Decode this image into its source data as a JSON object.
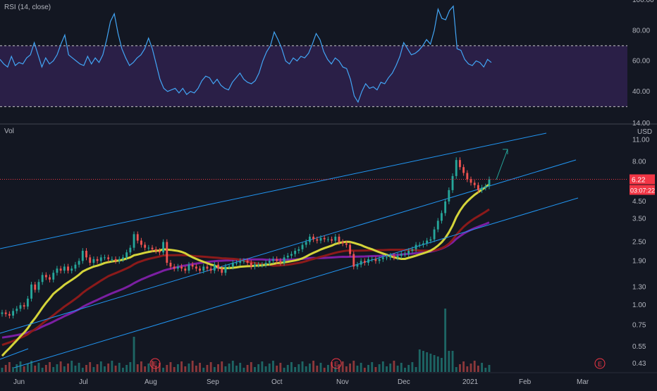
{
  "rsi_panel": {
    "title": "RSI (14, close)",
    "upper_band": 70,
    "lower_band": 30
  },
  "price_panel": {
    "volume_label": "Vol",
    "currency": "USD",
    "top_tick": "14.00",
    "price_badge": "6.22",
    "countdown_badge": "03:07:22",
    "earnings_marker": "E"
  },
  "colors": {
    "background": "#131722",
    "rsi_line": "#42a5f5",
    "rsi_fill": "#2a1f47",
    "channel": "#2196f3",
    "up_candle": "#26a69a",
    "down_candle": "#ef5350",
    "ma_fast": "#d4d43a",
    "ma_mid": "#8b1a1a",
    "ma_slow": "#7b1fa2",
    "badge": "#f23645"
  },
  "chart_data": [
    {
      "type": "line",
      "series": [
        {
          "name": "RSI (14, close)",
          "values": [
            61,
            58,
            56,
            63,
            57,
            59,
            58,
            62,
            64,
            72,
            64,
            56,
            62,
            58,
            60,
            64,
            71,
            77,
            64,
            62,
            60,
            58,
            57,
            63,
            58,
            62,
            59,
            64,
            74,
            86,
            91,
            78,
            68,
            62,
            57,
            59,
            62,
            64,
            68,
            75,
            68,
            58,
            48,
            42,
            40,
            41,
            42,
            39,
            42,
            38,
            40,
            39,
            42,
            47,
            50,
            49,
            45,
            48,
            44,
            42,
            41,
            46,
            49,
            52,
            48,
            46,
            45,
            47,
            52,
            60,
            66,
            70,
            79,
            74,
            68,
            60,
            58,
            62,
            60,
            63,
            62,
            65,
            71,
            78,
            74,
            66,
            61,
            58,
            62,
            60,
            56,
            55,
            48,
            37,
            33,
            40,
            45,
            42,
            43,
            41,
            46,
            45,
            49,
            52,
            57,
            63,
            72,
            68,
            64,
            65,
            67,
            70,
            74,
            71,
            80,
            94,
            88,
            87,
            93,
            96,
            68,
            67,
            61,
            58,
            57,
            60,
            59,
            56,
            61,
            59
          ]
        }
      ],
      "ylim": [
        20,
        100
      ],
      "yticks": [
        "40.00",
        "60.00",
        "80.00",
        "100.00"
      ],
      "bands": [
        30,
        70
      ]
    },
    {
      "type": "candlestick",
      "x_ticks": [
        "Jun",
        "Jul",
        "Aug",
        "Sep",
        "Oct",
        "Nov",
        "Dec",
        "2021",
        "Feb",
        "Mar"
      ],
      "y_ticks": [
        "0.43",
        "0.55",
        "0.75",
        "1.00",
        "1.30",
        "1.90",
        "2.50",
        "3.50",
        "4.50",
        "8.00",
        "11.00"
      ],
      "y_scale": "log",
      "ylim": [
        0.38,
        13
      ],
      "close": [
        0.9,
        0.88,
        0.86,
        0.92,
        0.95,
        1.0,
        0.98,
        1.1,
        1.35,
        1.25,
        1.4,
        1.55,
        1.5,
        1.45,
        1.6,
        1.7,
        1.65,
        1.75,
        1.65,
        1.7,
        1.8,
        1.9,
        2.2,
        2.0,
        1.85,
        1.95,
        1.9,
        2.0,
        2.0,
        1.95,
        1.95,
        1.9,
        1.95,
        2.0,
        2.15,
        2.3,
        2.8,
        2.55,
        2.4,
        2.3,
        2.3,
        2.25,
        2.2,
        2.15,
        2.5,
        1.85,
        1.75,
        1.7,
        1.75,
        1.7,
        1.65,
        1.8,
        1.75,
        1.7,
        1.65,
        1.75,
        1.7,
        1.65,
        1.8,
        1.7,
        1.6,
        1.75,
        1.75,
        1.85,
        1.85,
        1.9,
        1.9,
        1.85,
        1.75,
        1.8,
        1.8,
        1.8,
        1.85,
        1.9,
        1.95,
        1.9,
        1.85,
        2.0,
        2.05,
        2.1,
        2.2,
        2.25,
        2.4,
        2.5,
        2.7,
        2.6,
        2.55,
        2.65,
        2.6,
        2.6,
        2.55,
        2.7,
        2.5,
        2.45,
        2.4,
        2.1,
        1.75,
        1.8,
        1.9,
        1.85,
        1.95,
        1.95,
        1.9,
        1.95,
        2.0,
        2.0,
        2.05,
        2.0,
        2.05,
        2.1,
        2.1,
        2.2,
        2.25,
        2.4,
        2.4,
        2.45,
        2.55,
        2.6,
        3.0,
        3.4,
        3.8,
        4.5,
        5.3,
        6.5,
        8.2,
        7.4,
        6.8,
        6.2,
        5.9,
        5.7,
        5.3,
        5.5,
        5.6,
        6.2
      ],
      "volume_spikes": {
        "Jul": 0.35,
        "Dec": 0.9
      }
    }
  ]
}
